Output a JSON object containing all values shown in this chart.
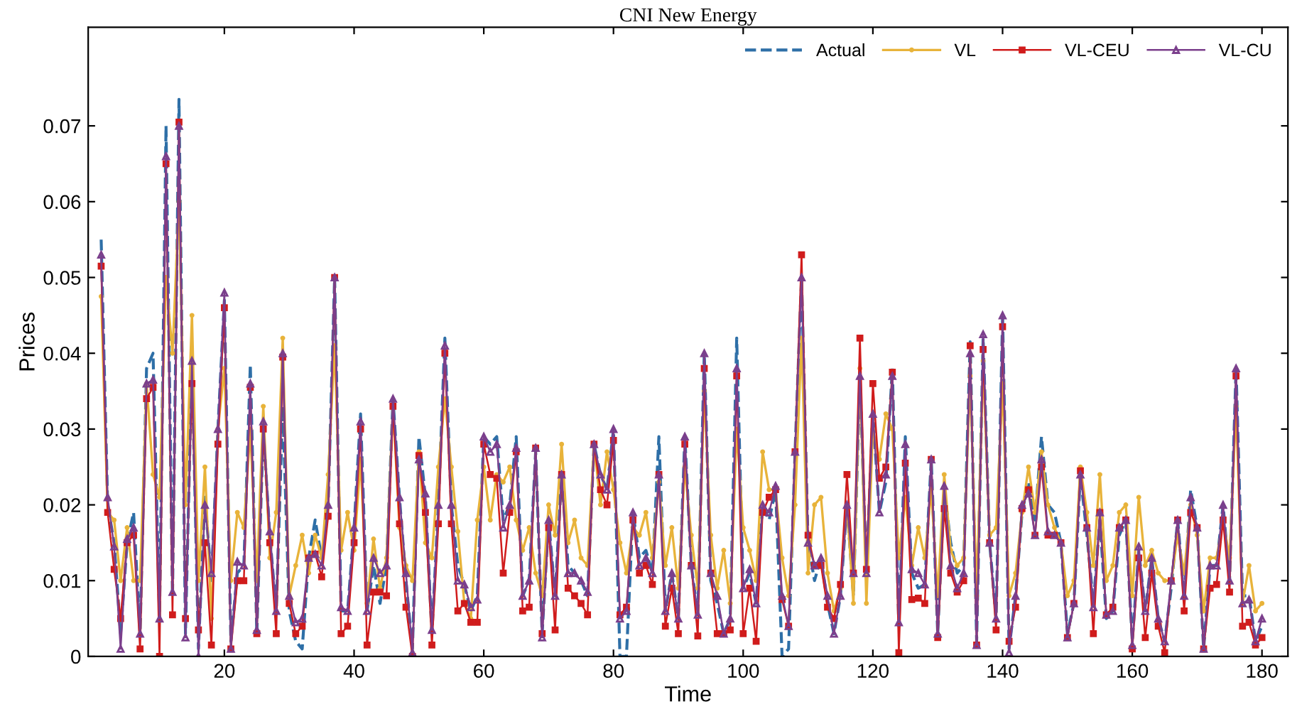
{
  "chart_data": {
    "type": "line",
    "title": "CNI New Energy",
    "xlabel": "Time",
    "ylabel": "Prices",
    "x": [
      1,
      2,
      3,
      4,
      5,
      6,
      7,
      8,
      9,
      10,
      11,
      12,
      13,
      14,
      15,
      16,
      17,
      18,
      19,
      20,
      21,
      22,
      23,
      24,
      25,
      26,
      27,
      28,
      29,
      30,
      31,
      32,
      33,
      34,
      35,
      36,
      37,
      38,
      39,
      40,
      41,
      42,
      43,
      44,
      45,
      46,
      47,
      48,
      49,
      50,
      51,
      52,
      53,
      54,
      55,
      56,
      57,
      58,
      59,
      60,
      61,
      62,
      63,
      64,
      65,
      66,
      67,
      68,
      69,
      70,
      71,
      72,
      73,
      74,
      75,
      76,
      77,
      78,
      79,
      80,
      81,
      82,
      83,
      84,
      85,
      86,
      87,
      88,
      89,
      90,
      91,
      92,
      93,
      94,
      95,
      96,
      97,
      98,
      99,
      100,
      101,
      102,
      103,
      104,
      105,
      106,
      107,
      108,
      109,
      110,
      111,
      112,
      113,
      114,
      115,
      116,
      117,
      118,
      119,
      120,
      121,
      122,
      123,
      124,
      125,
      126,
      127,
      128,
      129,
      130,
      131,
      132,
      133,
      134,
      135,
      136,
      137,
      138,
      139,
      140,
      141,
      142,
      143,
      144,
      145,
      146,
      147,
      148,
      149,
      150,
      151,
      152,
      153,
      154,
      155,
      156,
      157,
      158,
      159,
      160,
      161,
      162,
      163,
      164,
      165,
      166,
      167,
      168,
      169,
      170,
      171,
      172,
      173,
      174,
      175,
      176,
      177,
      178,
      179,
      180
    ],
    "xlim": [
      -1,
      184
    ],
    "xticks": [
      20,
      40,
      60,
      80,
      100,
      120,
      140,
      160,
      180
    ],
    "ylim": [
      0,
      0.083
    ],
    "yticks": [
      0,
      0.01,
      0.02,
      0.03,
      0.04,
      0.05,
      0.06,
      0.07
    ],
    "grid": false,
    "legend": "top right",
    "series": [
      {
        "name": "Actual",
        "color": "#2e6fa7",
        "line_style": "dashed",
        "marker": "none",
        "values": [
          0.055,
          0.02,
          0.015,
          0.003,
          0.015,
          0.019,
          0.003,
          0.038,
          0.04,
          0.005,
          0.07,
          0.008,
          0.0735,
          0.003,
          0.039,
          0.001,
          0.021,
          0.01,
          0.03,
          0.047,
          0.002,
          0.011,
          0.012,
          0.0385,
          0.003,
          0.03,
          0.016,
          0.006,
          0.033,
          0.006,
          0.002,
          0.001,
          0.013,
          0.018,
          0.013,
          0.02,
          0.05,
          0.006,
          0.006,
          0.017,
          0.032,
          0.006,
          0.012,
          0.007,
          0.012,
          0.034,
          0.021,
          0.01,
          0.001,
          0.029,
          0.021,
          0.003,
          0.02,
          0.042,
          0.02,
          0.012,
          0.0095,
          0.006,
          0.008,
          0.029,
          0.028,
          0.029,
          0.018,
          0.02,
          0.029,
          0.008,
          0.01,
          0.027,
          0.003,
          0.018,
          0.008,
          0.024,
          0.012,
          0.011,
          0.01,
          0.008,
          0.028,
          0.024,
          0.022,
          0.03,
          0.0,
          0.0,
          0.019,
          0.013,
          0.014,
          0.011,
          0.029,
          0.006,
          0.011,
          0.005,
          0.029,
          0.012,
          0.0055,
          0.04,
          0.01,
          0.007,
          0.003,
          0.005,
          0.042,
          0.009,
          0.011,
          0.007,
          0.02,
          0.018,
          0.022,
          0.0,
          0.001,
          0.027,
          0.05,
          0.015,
          0.01,
          0.013,
          0.007,
          0.003,
          0.008,
          0.02,
          0.008,
          0.037,
          0.011,
          0.032,
          0.019,
          0.023,
          0.038,
          0.004,
          0.029,
          0.011,
          0.009,
          0.0095,
          0.026,
          0.003,
          0.022,
          0.015,
          0.011,
          0.012,
          0.0415,
          0.002,
          0.042,
          0.015,
          0.005,
          0.045,
          0.001,
          0.008,
          0.019,
          0.023,
          0.018,
          0.029,
          0.02,
          0.019,
          0.015,
          0.003,
          0.007,
          0.024,
          0.016,
          0.007,
          0.018,
          0.005,
          0.006,
          0.016,
          0.018,
          0.002,
          0.014,
          0.006,
          0.013,
          0.005,
          0.002,
          0.009,
          0.018,
          0.008,
          0.022,
          0.017,
          0.001,
          0.012,
          0.012,
          0.02,
          0.01,
          0.038,
          0.008,
          0.008,
          0.002,
          0.004
        ]
      },
      {
        "name": "VL",
        "color": "#e8b33a",
        "line_style": "solid",
        "marker": "circle",
        "values": [
          0.0475,
          0.019,
          0.018,
          0.01,
          0.017,
          0.01,
          0.01,
          0.036,
          0.024,
          0.021,
          0.05,
          0.04,
          0.06,
          0.02,
          0.045,
          0.01,
          0.025,
          0.005,
          0.03,
          0.038,
          0.01,
          0.019,
          0.017,
          0.03,
          0.01,
          0.033,
          0.013,
          0.019,
          0.042,
          0.008,
          0.012,
          0.016,
          0.011,
          0.016,
          0.013,
          0.024,
          0.041,
          0.014,
          0.019,
          0.014,
          0.026,
          0.007,
          0.0155,
          0.009,
          0.013,
          0.033,
          0.017,
          0.012,
          0.01,
          0.027,
          0.015,
          0.013,
          0.025,
          0.034,
          0.025,
          0.0165,
          0.007,
          0.005,
          0.018,
          0.025,
          0.018,
          0.024,
          0.023,
          0.025,
          0.018,
          0.014,
          0.017,
          0.011,
          0.008,
          0.02,
          0.016,
          0.028,
          0.015,
          0.018,
          0.013,
          0.012,
          0.028,
          0.02,
          0.027,
          0.022,
          0.015,
          0.011,
          0.017,
          0.016,
          0.019,
          0.013,
          0.023,
          0.012,
          0.017,
          0.009,
          0.025,
          0.016,
          0.009,
          0.035,
          0.016,
          0.009,
          0.014,
          0.007,
          0.03,
          0.017,
          0.014,
          0.01,
          0.027,
          0.022,
          0.022,
          0.013,
          0.008,
          0.02,
          0.042,
          0.011,
          0.02,
          0.021,
          0.011,
          0.006,
          0.009,
          0.02,
          0.007,
          0.038,
          0.007,
          0.03,
          0.026,
          0.032,
          0.03,
          0.013,
          0.021,
          0.012,
          0.017,
          0.013,
          0.022,
          0.008,
          0.024,
          0.014,
          0.012,
          0.013,
          0.037,
          0.008,
          0.039,
          0.016,
          0.017,
          0.036,
          0.008,
          0.011,
          0.019,
          0.025,
          0.019,
          0.027,
          0.02,
          0.017,
          0.015,
          0.008,
          0.01,
          0.025,
          0.019,
          0.012,
          0.024,
          0.01,
          0.012,
          0.019,
          0.02,
          0.008,
          0.021,
          0.012,
          0.014,
          0.011,
          0.01,
          0.01,
          0.016,
          0.011,
          0.02,
          0.016,
          0.006,
          0.013,
          0.013,
          0.018,
          0.013,
          0.033,
          0.007,
          0.012,
          0.006,
          0.007
        ]
      },
      {
        "name": "VL-CEU",
        "color": "#d01c1c",
        "line_style": "solid",
        "marker": "square",
        "values": [
          0.0515,
          0.019,
          0.0115,
          0.005,
          0.015,
          0.016,
          0.001,
          0.034,
          0.0355,
          0.0,
          0.065,
          0.0055,
          0.0705,
          0.005,
          0.036,
          0.0035,
          0.015,
          0.0015,
          0.028,
          0.046,
          0.001,
          0.01,
          0.01,
          0.0355,
          0.003,
          0.03,
          0.015,
          0.003,
          0.0395,
          0.007,
          0.003,
          0.004,
          0.013,
          0.0135,
          0.0105,
          0.0185,
          0.05,
          0.003,
          0.004,
          0.015,
          0.03,
          0.0015,
          0.0085,
          0.0085,
          0.008,
          0.033,
          0.0175,
          0.0065,
          0.0,
          0.0265,
          0.019,
          0.0015,
          0.0175,
          0.04,
          0.0175,
          0.006,
          0.007,
          0.0045,
          0.0045,
          0.028,
          0.024,
          0.0235,
          0.011,
          0.019,
          0.027,
          0.006,
          0.0065,
          0.0275,
          0.003,
          0.017,
          0.0035,
          0.024,
          0.009,
          0.008,
          0.007,
          0.0055,
          0.028,
          0.022,
          0.02,
          0.0285,
          0.0055,
          0.0065,
          0.018,
          0.011,
          0.012,
          0.0095,
          0.024,
          0.004,
          0.009,
          0.003,
          0.028,
          0.012,
          0.0027,
          0.038,
          0.011,
          0.003,
          0.003,
          0.0035,
          0.037,
          0.003,
          0.009,
          0.002,
          0.019,
          0.021,
          0.022,
          0.0075,
          0.004,
          0.027,
          0.053,
          0.016,
          0.012,
          0.012,
          0.0065,
          0.005,
          0.0095,
          0.024,
          0.011,
          0.042,
          0.0115,
          0.036,
          0.0235,
          0.025,
          0.0375,
          0.0005,
          0.0255,
          0.0075,
          0.0077,
          0.007,
          0.026,
          0.0025,
          0.0195,
          0.011,
          0.0085,
          0.01,
          0.041,
          0.0015,
          0.0405,
          0.015,
          0.0035,
          0.0435,
          0.002,
          0.0065,
          0.0195,
          0.022,
          0.016,
          0.025,
          0.016,
          0.016,
          0.015,
          0.0025,
          0.007,
          0.0245,
          0.017,
          0.003,
          0.019,
          0.0055,
          0.0065,
          0.017,
          0.018,
          0.001,
          0.013,
          0.0025,
          0.011,
          0.004,
          0.0005,
          0.01,
          0.018,
          0.006,
          0.019,
          0.017,
          0.001,
          0.009,
          0.0095,
          0.018,
          0.0085,
          0.037,
          0.004,
          0.0045,
          0.0015,
          0.0025
        ]
      },
      {
        "name": "VL-CU",
        "color": "#7b3f8c",
        "line_style": "solid",
        "marker": "triangle",
        "values": [
          0.053,
          0.021,
          0.0145,
          0.001,
          0.0155,
          0.017,
          0.003,
          0.036,
          0.0365,
          0.005,
          0.066,
          0.0085,
          0.07,
          0.0025,
          0.039,
          0.0,
          0.02,
          0.011,
          0.03,
          0.048,
          0.001,
          0.0125,
          0.012,
          0.036,
          0.0035,
          0.031,
          0.0165,
          0.006,
          0.04,
          0.008,
          0.0045,
          0.005,
          0.013,
          0.0135,
          0.012,
          0.02,
          0.05,
          0.0065,
          0.006,
          0.017,
          0.031,
          0.006,
          0.013,
          0.011,
          0.012,
          0.034,
          0.021,
          0.011,
          0.0005,
          0.026,
          0.0215,
          0.0035,
          0.02,
          0.041,
          0.02,
          0.01,
          0.0095,
          0.0065,
          0.0075,
          0.029,
          0.027,
          0.028,
          0.017,
          0.02,
          0.0275,
          0.008,
          0.01,
          0.0275,
          0.0025,
          0.018,
          0.008,
          0.024,
          0.011,
          0.011,
          0.01,
          0.0085,
          0.028,
          0.024,
          0.022,
          0.03,
          0.005,
          0.006,
          0.019,
          0.012,
          0.013,
          0.011,
          0.024,
          0.006,
          0.011,
          0.005,
          0.029,
          0.012,
          0.0055,
          0.04,
          0.011,
          0.008,
          0.003,
          0.005,
          0.038,
          0.009,
          0.0115,
          0.007,
          0.02,
          0.019,
          0.0225,
          0.008,
          0.004,
          0.027,
          0.05,
          0.015,
          0.012,
          0.013,
          0.008,
          0.003,
          0.008,
          0.02,
          0.011,
          0.037,
          0.011,
          0.032,
          0.019,
          0.024,
          0.037,
          0.0045,
          0.028,
          0.0115,
          0.011,
          0.0095,
          0.026,
          0.003,
          0.0225,
          0.012,
          0.009,
          0.011,
          0.04,
          0.0015,
          0.0425,
          0.015,
          0.005,
          0.045,
          0.0005,
          0.008,
          0.02,
          0.0215,
          0.016,
          0.026,
          0.0165,
          0.016,
          0.015,
          0.0025,
          0.007,
          0.024,
          0.017,
          0.0065,
          0.019,
          0.0055,
          0.006,
          0.017,
          0.018,
          0.0015,
          0.0145,
          0.006,
          0.013,
          0.005,
          0.002,
          0.01,
          0.018,
          0.008,
          0.021,
          0.017,
          0.001,
          0.012,
          0.012,
          0.02,
          0.01,
          0.038,
          0.007,
          0.0075,
          0.002,
          0.005
        ]
      }
    ]
  }
}
